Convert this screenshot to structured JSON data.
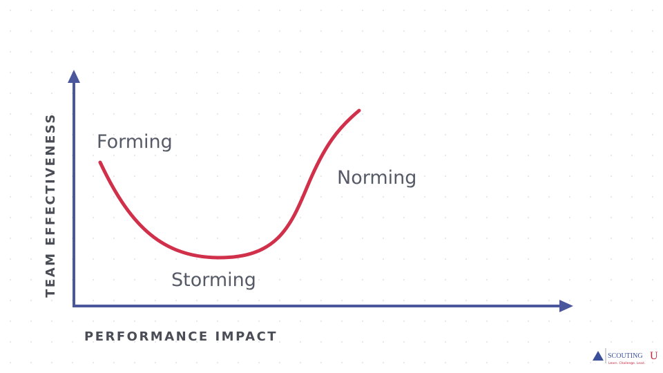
{
  "axes": {
    "y_label": "TEAM EFFECTIVENESS",
    "x_label": "PERFORMANCE IMPACT"
  },
  "stages": [
    {
      "label": "Forming"
    },
    {
      "label": "Storming"
    },
    {
      "label": "Norming"
    }
  ],
  "logo": {
    "name": "SCOUTING",
    "suffix": "U",
    "tagline": "Learn. Challenge. Lead."
  }
}
